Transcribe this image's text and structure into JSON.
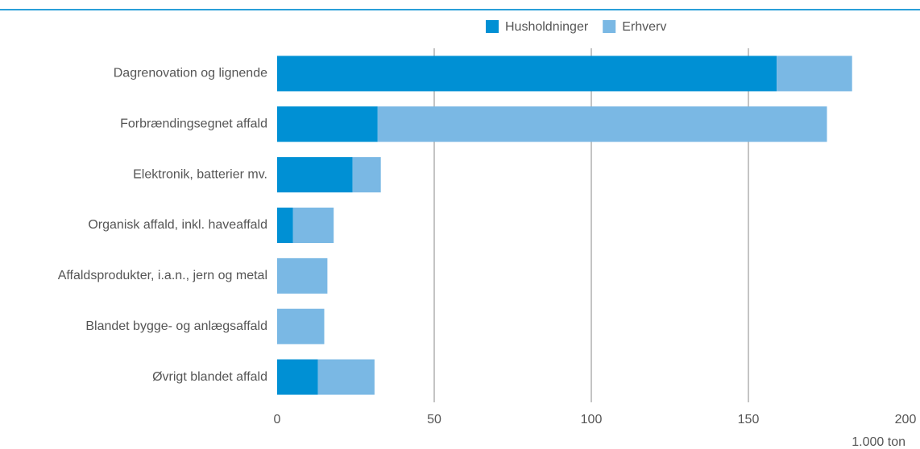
{
  "chart_data": {
    "type": "stacked_bar_horizontal",
    "categories": [
      "Dagrenovation og lignende",
      "Forbrændingsegnet affald",
      "Elektronik, batterier mv.",
      "Organisk affald, inkl. haveaffald",
      "Affaldsprodukter, i.a.n., jern og metal",
      "Blandet bygge- og anlægsaffald",
      "Øvrigt blandet affald"
    ],
    "series": [
      {
        "name": "Husholdninger",
        "color": "#0090d4",
        "values": [
          159,
          32,
          24,
          5,
          0,
          0,
          13
        ]
      },
      {
        "name": "Erhverv",
        "color": "#7ab8e4",
        "values": [
          24,
          143,
          9,
          13,
          16,
          15,
          18
        ]
      }
    ],
    "xlim": [
      0,
      200
    ],
    "xticks": [
      0,
      50,
      100,
      150,
      200
    ],
    "grid": true,
    "xlabel": "1.000 ton",
    "legend": "top"
  }
}
